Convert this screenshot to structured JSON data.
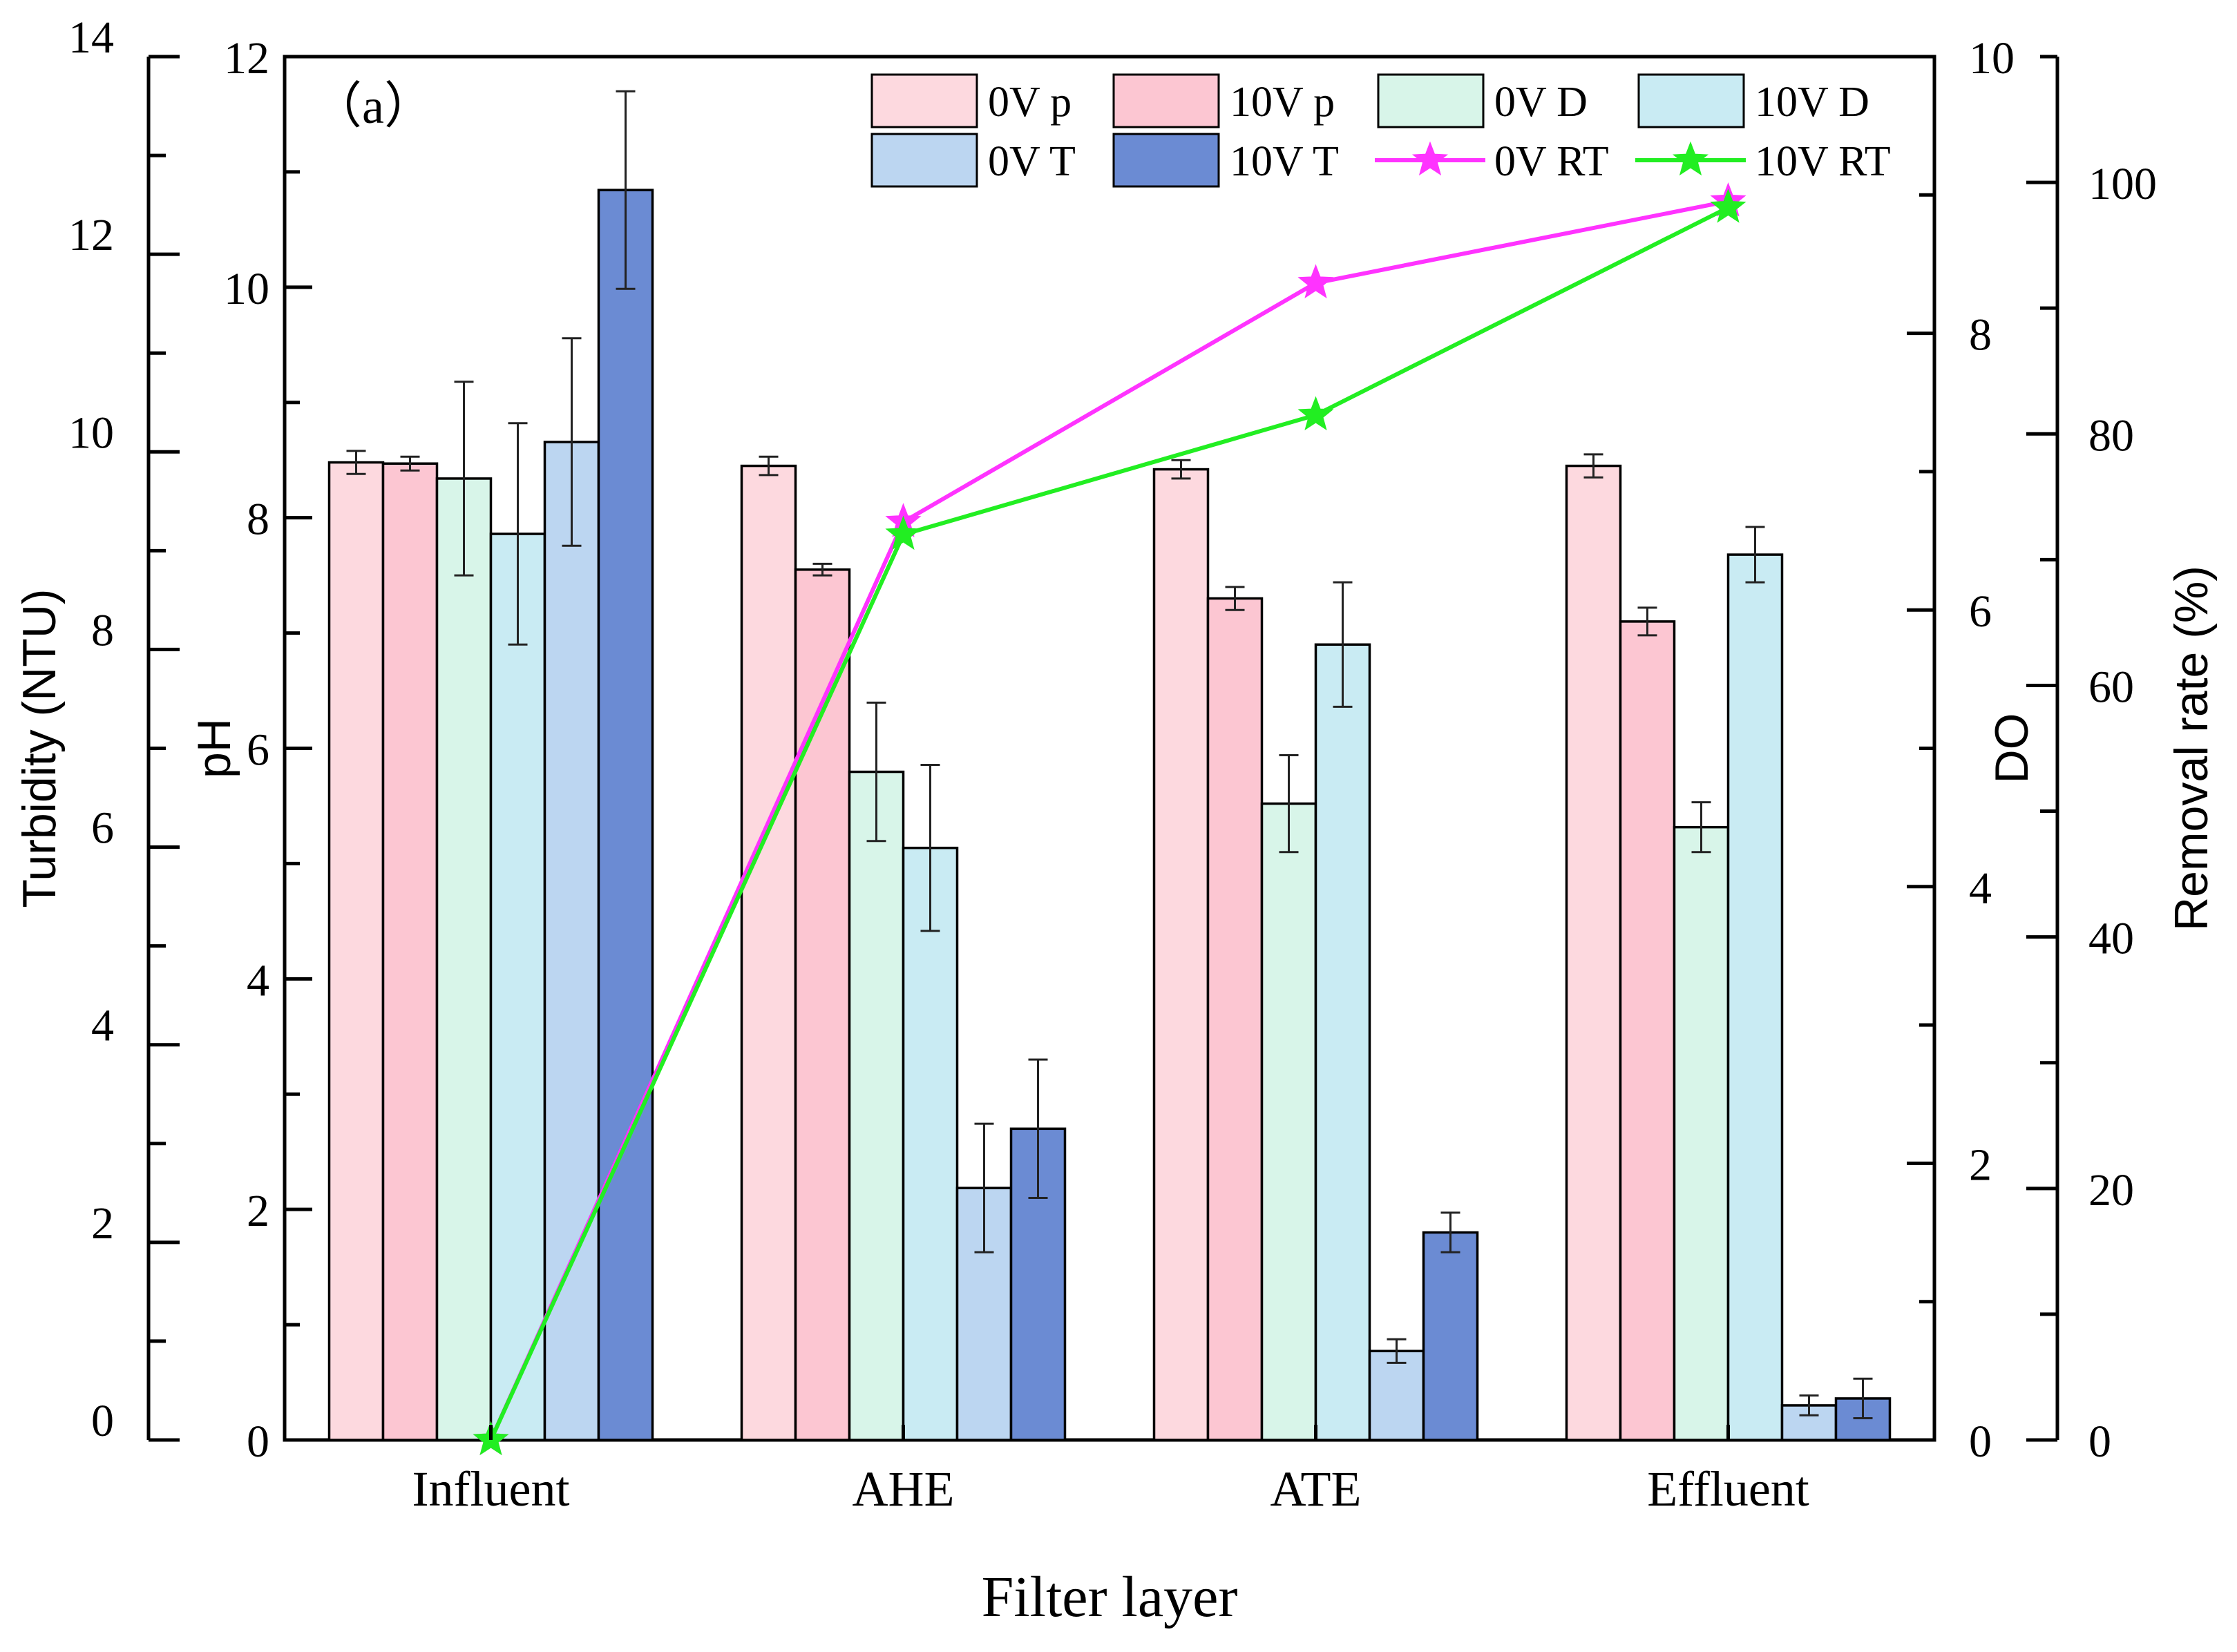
{
  "chart_data": {
    "type": "bar",
    "panel_label": "（a）",
    "xlabel": "Filter layer",
    "categories": [
      "Influent",
      "AHE",
      "ATE",
      "Effluent"
    ],
    "axes": {
      "turbidity": {
        "label": "Turbidity (NTU)",
        "range": [
          0,
          14
        ],
        "ticks": [
          0,
          2,
          4,
          6,
          8,
          10,
          12,
          14
        ]
      },
      "ph": {
        "label": "pH",
        "range": [
          0,
          12
        ],
        "ticks": [
          0,
          2,
          4,
          6,
          8,
          10,
          12
        ]
      },
      "do": {
        "label": "DO",
        "range": [
          0,
          10
        ],
        "ticks": [
          0,
          2,
          4,
          6,
          8,
          10
        ]
      },
      "removal": {
        "label": "Removal rate (%)",
        "range": [
          0,
          110
        ],
        "ticks": [
          0,
          20,
          40,
          60,
          80,
          100
        ]
      }
    },
    "series": [
      {
        "name": "0V p",
        "axis": "ph",
        "color": "#fdd9df",
        "values": [
          8.48,
          8.45,
          8.42,
          8.45
        ],
        "errors": [
          0.1,
          0.08,
          0.08,
          0.1
        ]
      },
      {
        "name": "10V p",
        "axis": "ph",
        "color": "#fcc6d2",
        "values": [
          8.47,
          7.55,
          7.3,
          7.1
        ],
        "errors": [
          0.06,
          0.05,
          0.1,
          0.12
        ]
      },
      {
        "name": "0V D",
        "axis": "do",
        "color": "#d8f5e9",
        "values": [
          6.95,
          4.83,
          4.6,
          4.43
        ],
        "errors": [
          0.7,
          0.5,
          0.35,
          0.18
        ]
      },
      {
        "name": "10V D",
        "axis": "do",
        "color": "#c9ebf3",
        "values": [
          6.55,
          4.28,
          5.75,
          6.4
        ],
        "errors": [
          0.8,
          0.6,
          0.45,
          0.2
        ]
      },
      {
        "name": "0V T",
        "axis": "turbidity",
        "color": "#bcd6f1",
        "values": [
          10.1,
          2.55,
          0.9,
          0.35
        ],
        "errors": [
          1.05,
          0.65,
          0.12,
          0.1
        ]
      },
      {
        "name": "10V T",
        "axis": "turbidity",
        "color": "#6b8bd3",
        "values": [
          12.65,
          3.15,
          2.1,
          0.42
        ],
        "errors": [
          1.0,
          0.7,
          0.2,
          0.2
        ]
      }
    ],
    "lines": [
      {
        "name": "0V RT",
        "axis": "removal",
        "color": "#ff33ff",
        "values": [
          0,
          73,
          92,
          98.5
        ]
      },
      {
        "name": "10V RT",
        "axis": "removal",
        "color": "#22ee22",
        "values": [
          0,
          72,
          81.5,
          98
        ]
      }
    ]
  }
}
